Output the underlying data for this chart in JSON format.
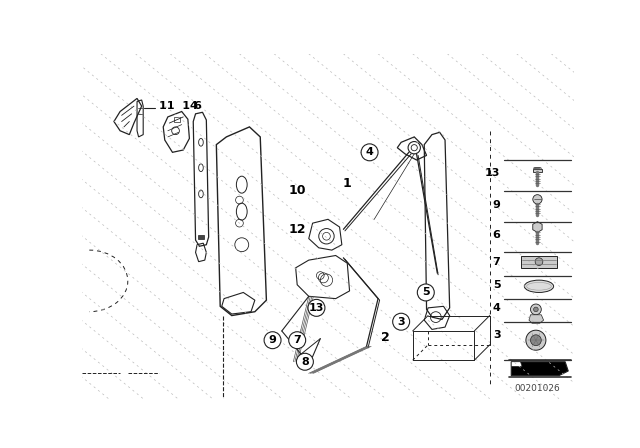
{
  "bg_color": "#ffffff",
  "lc": "#222222",
  "lc_light": "#aaaaaa",
  "watermark": "00201026",
  "fig_width": 6.4,
  "fig_height": 4.48,
  "dpi": 100,
  "diag_color": "#bbbbbb",
  "border_color": "#333333"
}
